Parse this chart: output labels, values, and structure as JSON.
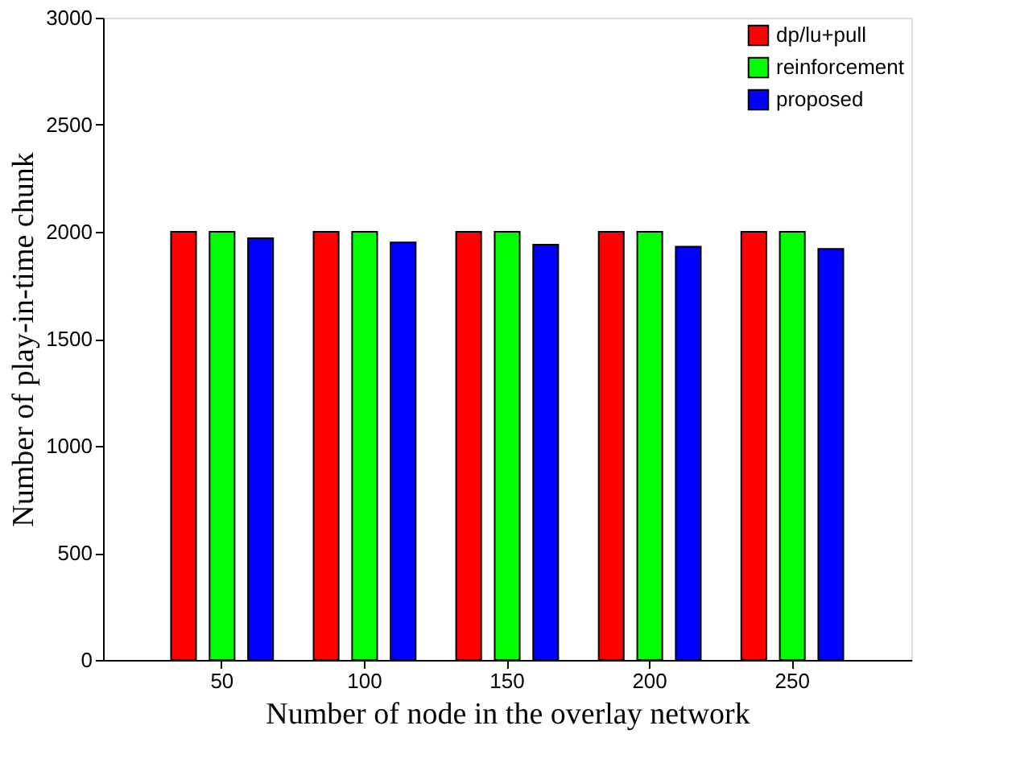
{
  "chart_data": {
    "type": "bar",
    "xlabel": "Number of node in the overlay network",
    "ylabel": "Number of play-in-time chunk",
    "categories": [
      "50",
      "100",
      "150",
      "200",
      "250"
    ],
    "series": [
      {
        "name": "dp/lu+pull",
        "color": "#ff0000",
        "values": [
          2000,
          2000,
          2000,
          2000,
          2000
        ]
      },
      {
        "name": "reinforcement",
        "color": "#00ff00",
        "values": [
          2000,
          2000,
          2000,
          2000,
          2000
        ]
      },
      {
        "name": "proposed",
        "color": "#0000ff",
        "values": [
          1970,
          1950,
          1940,
          1930,
          1920
        ]
      }
    ],
    "ylim": [
      0,
      3000
    ],
    "yticks": [
      0,
      500,
      1000,
      1500,
      2000,
      2500,
      3000
    ],
    "grid": false,
    "legend": "top right"
  }
}
